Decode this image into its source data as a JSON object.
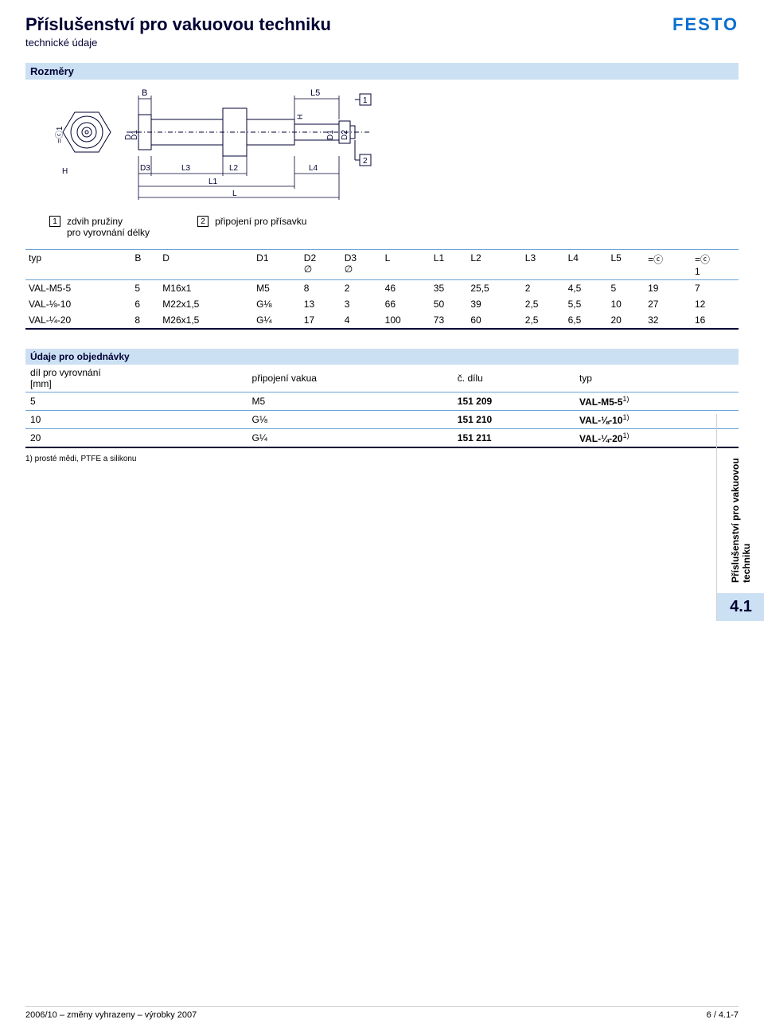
{
  "header": {
    "title": "Příslušenství pro vakuovou techniku",
    "subtitle": "technické údaje",
    "logo": "FESTO",
    "logo_color": "#0a6fcf"
  },
  "dimensions_section": {
    "title": "Rozměry",
    "legend": [
      {
        "num": "1",
        "text1": "zdvih pružiny",
        "text2": "pro vyrovnání délky"
      },
      {
        "num": "2",
        "text1": "připojení pro přísavku",
        "text2": ""
      }
    ],
    "columns": [
      "typ",
      "B",
      "D",
      "D1",
      "D2\n∅",
      "D3\n∅",
      "L",
      "L1",
      "L2",
      "L3",
      "L4",
      "L5",
      "⌖",
      "⌖\n1"
    ],
    "col_headers": [
      {
        "label": "typ"
      },
      {
        "label": "B"
      },
      {
        "label": "D"
      },
      {
        "label": "D1"
      },
      {
        "label": "D2",
        "sub": "∅"
      },
      {
        "label": "D3",
        "sub": "∅"
      },
      {
        "label": "L"
      },
      {
        "label": "L1"
      },
      {
        "label": "L2"
      },
      {
        "label": "L3"
      },
      {
        "label": "L4"
      },
      {
        "label": "L5"
      },
      {
        "label": "=ⓒ"
      },
      {
        "label": "=ⓒ",
        "sub": "1"
      }
    ],
    "rows": [
      [
        "VAL-M5-5",
        "5",
        "M16x1",
        "M5",
        "8",
        "2",
        "46",
        "35",
        "25,5",
        "2",
        "4,5",
        "5",
        "19",
        "7"
      ],
      [
        "VAL-⅛-10",
        "6",
        "M22x1,5",
        "G⅛",
        "13",
        "3",
        "66",
        "50",
        "39",
        "2,5",
        "5,5",
        "10",
        "27",
        "12"
      ],
      [
        "VAL-¼-20",
        "8",
        "M26x1,5",
        "G¼",
        "17",
        "4",
        "100",
        "73",
        "60",
        "2,5",
        "6,5",
        "20",
        "32",
        "16"
      ]
    ]
  },
  "order_section": {
    "title": "Údaje pro objednávky",
    "columns": [
      {
        "l1": "díl pro vyrovnání",
        "l2": "[mm]"
      },
      {
        "l1": "připojení vakua",
        "l2": ""
      },
      {
        "l1": "č. dílu",
        "l2": ""
      },
      {
        "l1": "typ",
        "l2": ""
      }
    ],
    "rows": [
      [
        "5",
        "M5",
        "151 209",
        "VAL-M5-5",
        "1)"
      ],
      [
        "10",
        "G⅛",
        "151 210",
        "VAL-⅛-10",
        "1)"
      ],
      [
        "20",
        "G¼",
        "151 211",
        "VAL-¼-20",
        "1)"
      ]
    ],
    "footnote": "1)   prosté mědi, PTFE a silikonu"
  },
  "side": {
    "text": "Příslušenství pro vakuovou techniku",
    "number": "4.1"
  },
  "footer": {
    "left": "2006/10 – změny vyhrazeny – výrobky 2007",
    "right": "6 / 4.1-7"
  },
  "diagram": {
    "stroke": "#003",
    "fill": "#fff",
    "bg": "#ffffff",
    "labels": [
      "B",
      "L5",
      "D",
      "D1",
      "D1",
      "D2",
      "D3",
      "L3",
      "L2",
      "L4",
      "L1",
      "L",
      "H",
      "=ⓒ1"
    ],
    "callouts": [
      "1",
      "2"
    ]
  },
  "colors": {
    "bar": "#cce0f4",
    "rule": "#6aa2d8",
    "heavy": "#003",
    "text": "#000"
  }
}
